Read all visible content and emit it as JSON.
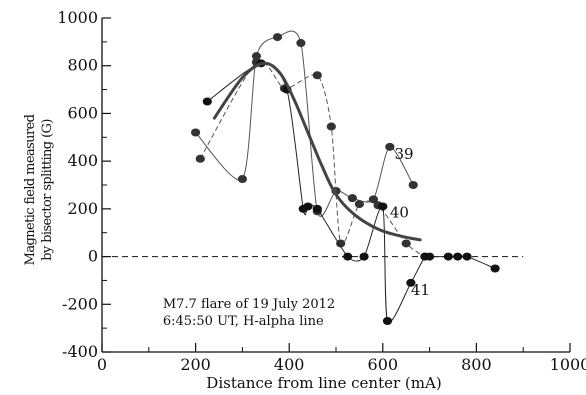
{
  "chart_data": {
    "type": "line",
    "title": "",
    "xlabel": "Distance from line center (mA)",
    "ylabel": [
      "Magnetic field measured",
      "by bisector splitting (G)"
    ],
    "xlim": [
      0,
      1000
    ],
    "ylim": [
      -400,
      1000
    ],
    "xticks": [
      0,
      200,
      400,
      600,
      800,
      1000
    ],
    "yticks": [
      -400,
      -200,
      0,
      200,
      400,
      600,
      800,
      1000
    ],
    "xtick_labels": [
      "0",
      "200",
      "400",
      "600",
      "800",
      "1000"
    ],
    "ytick_labels": [
      "-400",
      "-200",
      "0",
      "200",
      "400",
      "600",
      "800",
      "1000"
    ],
    "zero_line": {
      "y": 0,
      "style": "dashed"
    },
    "annotation": [
      "M7.7 flare of 19 July 2012",
      "6:45:50 UT, H-alpha line"
    ],
    "series": [
      {
        "name": "39",
        "style": "thin-solid",
        "color": "#555555",
        "x": [
          200,
          300,
          330,
          375,
          425,
          460,
          500,
          535,
          580,
          615,
          665
        ],
        "y": [
          520,
          325,
          840,
          920,
          895,
          190,
          275,
          245,
          240,
          460,
          300
        ]
      },
      {
        "name": "40",
        "style": "thin-dashed",
        "color": "#555555",
        "x": [
          210,
          330,
          390,
          460,
          490,
          510,
          550,
          590,
          650,
          690
        ],
        "y": [
          410,
          815,
          705,
          760,
          545,
          55,
          220,
          215,
          55,
          0
        ]
      },
      {
        "name": "41",
        "style": "thin-solid",
        "color": "#222222",
        "x": [
          225,
          340,
          395,
          430,
          440,
          460,
          525,
          560,
          600,
          610,
          660,
          690,
          700,
          740,
          760,
          780,
          840
        ],
        "y": [
          650,
          810,
          700,
          200,
          210,
          200,
          0,
          0,
          210,
          -270,
          -110,
          0,
          0,
          0,
          0,
          0,
          -50
        ]
      },
      {
        "name": "",
        "style": "thick-fit",
        "color": "#444444",
        "x": [
          240,
          300,
          345,
          380,
          410,
          440,
          470,
          500,
          540,
          590,
          640,
          680
        ],
        "y": [
          580,
          750,
          810,
          770,
          660,
          520,
          380,
          260,
          175,
          115,
          85,
          70
        ]
      }
    ],
    "series_label_positions": [
      {
        "name": "39",
        "x": 625,
        "y": 430
      },
      {
        "name": "40",
        "x": 615,
        "y": 185
      },
      {
        "name": "41",
        "x": 660,
        "y": -140
      }
    ]
  }
}
